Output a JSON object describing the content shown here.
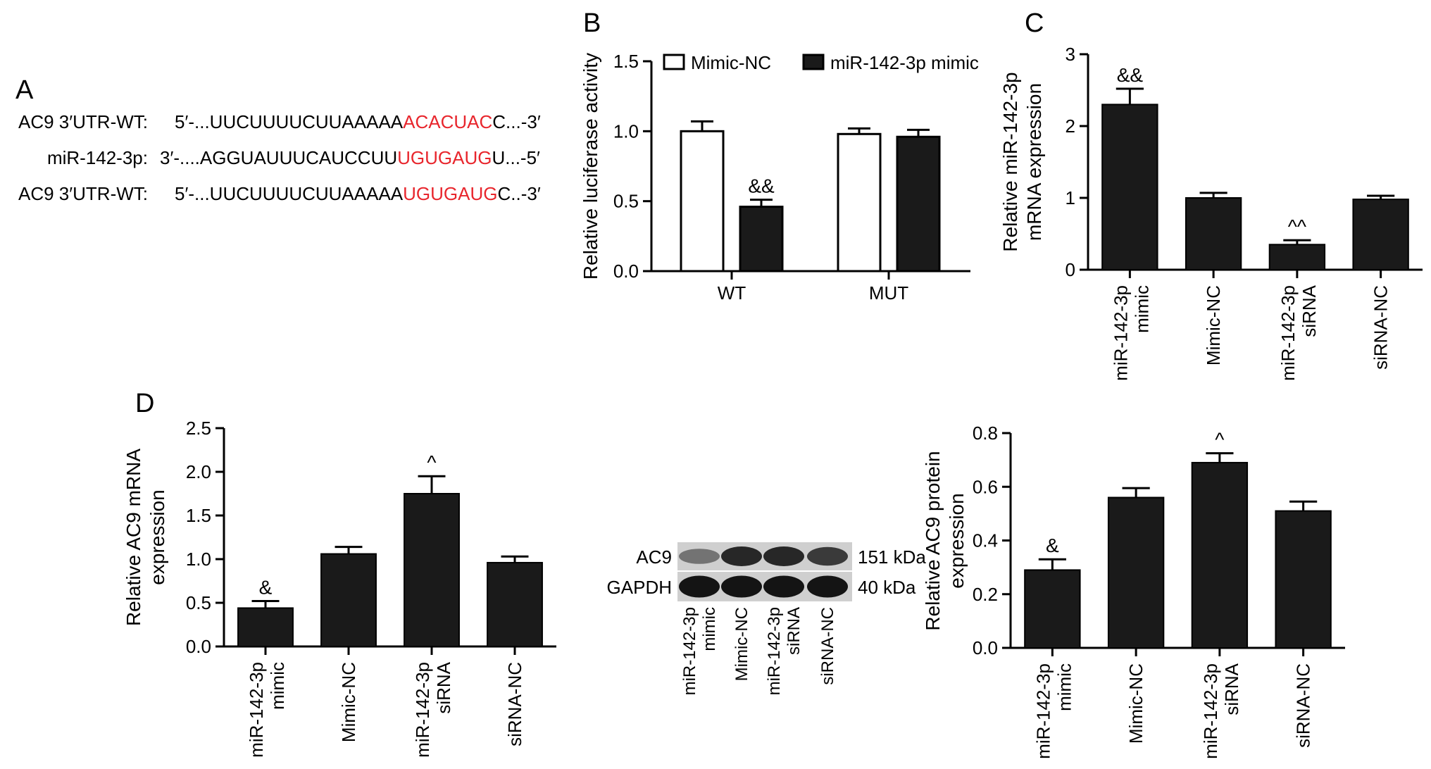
{
  "panel_letters": {
    "A": "A",
    "B": "B",
    "C": "C",
    "D": "D"
  },
  "colors": {
    "bar_fill": "#1a1a1a",
    "open_fill": "#ffffff",
    "highlight": "#e8262d",
    "text": "#000000"
  },
  "panelA": {
    "rows": [
      {
        "label": "AC9 3′UTR-WT:",
        "prefix": "5′-...UUCUUUUCUUAAAAA",
        "highlight": "ACACUAC",
        "suffix": "C...-3′"
      },
      {
        "label": "miR-142-3p:",
        "prefix": "3′-....AGGUAUUUCAUCCUU",
        "highlight": "UGUGAUG",
        "suffix": "U...-5′"
      },
      {
        "label": "AC9 3′UTR-WT:",
        "prefix": "5′-...UUCUUUUCUUAAAAA",
        "highlight": "UGUGAUG",
        "suffix": "C..-3′"
      }
    ]
  },
  "blot": {
    "bands": [
      {
        "label": "AC9",
        "size": "151 kDa",
        "intensity": [
          0.45,
          0.85,
          0.85,
          0.75
        ]
      },
      {
        "label": "GAPDH",
        "size": "40 kDa",
        "intensity": [
          0.95,
          0.95,
          0.95,
          0.95
        ]
      }
    ],
    "lanes": [
      "miR-142-3p\nmimic",
      "Mimic-NC",
      "miR-142-3p\nsiRNA",
      "siRNA-NC"
    ]
  },
  "chart_data": [
    {
      "id": "B",
      "type": "bar",
      "categories": [
        "WT",
        "MUT"
      ],
      "series": [
        {
          "name": "Mimic-NC",
          "style": "open",
          "values": [
            1.0,
            0.98
          ],
          "errors": [
            0.07,
            0.04
          ]
        },
        {
          "name": "miR-142-3p mimic",
          "style": "filled",
          "values": [
            0.46,
            0.96
          ],
          "errors": [
            0.05,
            0.05
          ]
        }
      ],
      "annotations": [
        {
          "series": 1,
          "index": 0,
          "text": "&&"
        }
      ],
      "ylabel": "Relative luciferase activity",
      "xlabel": "",
      "ylim": [
        0,
        1.5
      ],
      "yticks": [
        "0.0",
        "0.5",
        "1.0",
        "1.5"
      ],
      "legend": "top"
    },
    {
      "id": "C",
      "type": "bar",
      "categories": [
        "miR-142-3p\nmimic",
        "Mimic-NC",
        "miR-142-3p\nsiRNA",
        "siRNA-NC"
      ],
      "values": [
        2.3,
        1.0,
        0.35,
        0.98
      ],
      "errors": [
        0.22,
        0.07,
        0.06,
        0.05
      ],
      "annotations": [
        "&&",
        "",
        "^^",
        ""
      ],
      "ylabel": "Relative miR-142-3p\nmRNA expression",
      "xlabel": "",
      "ylim": [
        0,
        3
      ],
      "yticks": [
        "0",
        "1",
        "2",
        "3"
      ]
    },
    {
      "id": "D1",
      "type": "bar",
      "categories": [
        "miR-142-3p\nmimic",
        "Mimic-NC",
        "miR-142-3p\nsiRNA",
        "siRNA-NC"
      ],
      "values": [
        0.44,
        1.06,
        1.75,
        0.96
      ],
      "errors": [
        0.08,
        0.08,
        0.2,
        0.07
      ],
      "annotations": [
        "&",
        "",
        "^",
        ""
      ],
      "ylabel": "Relative AC9 mRNA\nexpression",
      "xlabel": "",
      "ylim": [
        0,
        2.5
      ],
      "yticks": [
        "0.0",
        "0.5",
        "1.0",
        "1.5",
        "2.0",
        "2.5"
      ]
    },
    {
      "id": "D2",
      "type": "bar",
      "categories": [
        "miR-142-3p\nmimic",
        "Mimic-NC",
        "miR-142-3p\nsiRNA",
        "siRNA-NC"
      ],
      "values": [
        0.29,
        0.56,
        0.69,
        0.51
      ],
      "errors": [
        0.04,
        0.035,
        0.035,
        0.035
      ],
      "annotations": [
        "&",
        "",
        "^",
        ""
      ],
      "ylabel": "Relative AC9 protein\nexpression",
      "xlabel": "",
      "ylim": [
        0,
        0.8
      ],
      "yticks": [
        "0.0",
        "0.2",
        "0.4",
        "0.6",
        "0.8"
      ]
    }
  ]
}
